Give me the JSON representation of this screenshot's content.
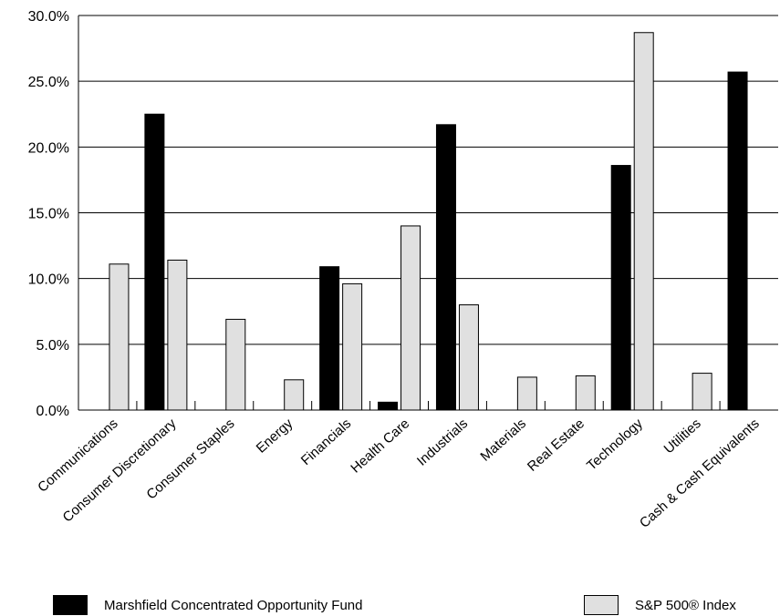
{
  "chart_data": {
    "type": "bar",
    "categories": [
      "Communications",
      "Consumer Discretionary",
      "Consumer Staples",
      "Energy",
      "Financials",
      "Health Care",
      "Industrials",
      "Materials",
      "Real Estate",
      "Technology",
      "Utilities",
      "Cash & Cash Equivalents"
    ],
    "series": [
      {
        "name": "Marshfield Concentrated Opportunity Fund",
        "color": "#000000",
        "values": [
          0,
          22.5,
          0,
          0,
          10.9,
          0.6,
          21.7,
          0,
          0,
          18.6,
          0,
          25.7
        ]
      },
      {
        "name": "S&P 500® Index",
        "color": "#e0e0e0",
        "values": [
          11.1,
          11.4,
          6.9,
          2.3,
          9.6,
          14.0,
          8.0,
          2.5,
          2.6,
          28.7,
          2.8,
          0
        ]
      }
    ],
    "ylim": [
      0,
      30
    ],
    "yticks": [
      0,
      5,
      10,
      15,
      20,
      25,
      30
    ],
    "ytick_labels": [
      "0.0%",
      "5.0%",
      "10.0%",
      "15.0%",
      "20.0%",
      "25.0%",
      "30.0%"
    ],
    "grid": true,
    "legend_position": "bottom"
  }
}
